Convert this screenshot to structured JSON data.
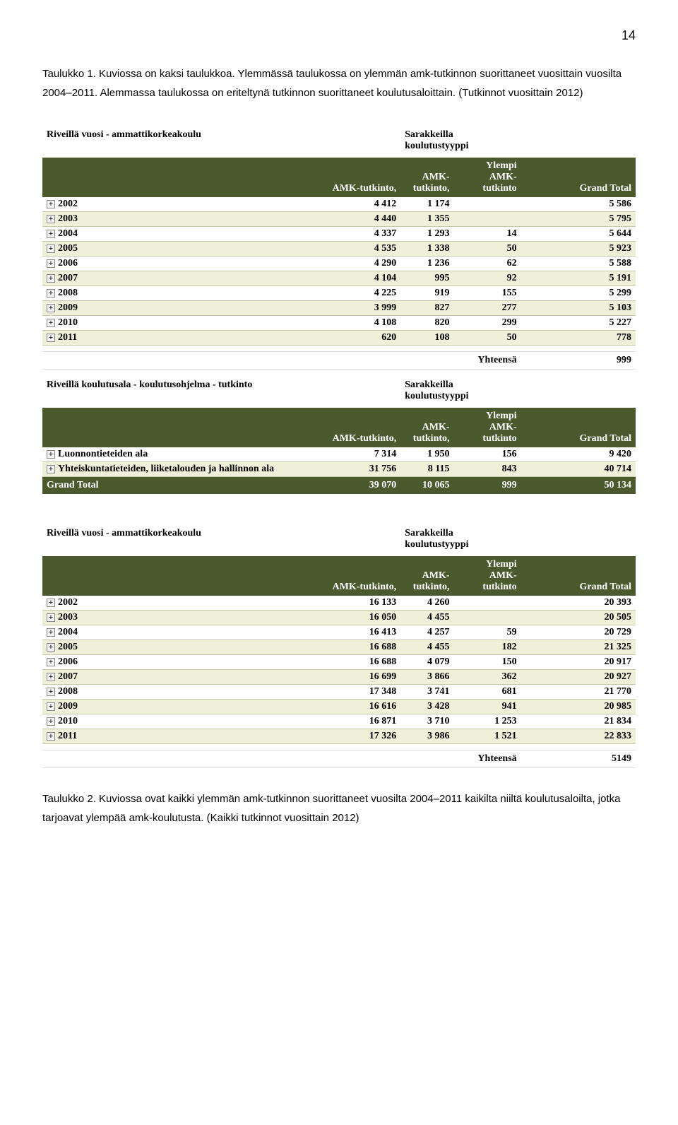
{
  "page_number": "14",
  "caption1": "Taulukko 1. Kuviossa on kaksi taulukkoa. Ylemmässä taulukossa on ylemmän amk-tutkinnon suorittaneet vuosittain vuosilta 2004–2011. Alemmassa taulukossa on eriteltynä tutkinnon suorittaneet koulutusaloittain. (Tutkinnot vuosittain 2012)",
  "caption2": "Taulukko 2. Kuviossa ovat kaikki ylemmän amk-tutkinnon suorittaneet vuosilta 2004–2011 kaikilta niiltä koulutusaloilta, jotka tarjoavat ylempää amk-koulutusta. (Kaikki tutkinnot vuosittain 2012)",
  "labels": {
    "rows_year": "Riveillä vuosi - ammattikorkeakoulu",
    "rows_field": "Riveillä koulutusala - koulutusohjelma - tutkinto",
    "cols": "Sarakkeilla koulutustyyppi",
    "col_amk1": "AMK-tutkinto,",
    "col_amk2": "AMK-tutkinto,",
    "col_ylempi": "Ylempi AMK-tutkinto",
    "col_total": "Grand Total",
    "yhteensa": "Yhteensä",
    "grand_total": "Grand Total"
  },
  "table1a": {
    "rows": [
      {
        "label": "2002",
        "c1": "4 412",
        "c2": "1 174",
        "c3": "",
        "c4": "5 586"
      },
      {
        "label": "2003",
        "c1": "4 440",
        "c2": "1 355",
        "c3": "",
        "c4": "5 795"
      },
      {
        "label": "2004",
        "c1": "4 337",
        "c2": "1 293",
        "c3": "14",
        "c4": "5 644"
      },
      {
        "label": "2005",
        "c1": "4 535",
        "c2": "1 338",
        "c3": "50",
        "c4": "5 923"
      },
      {
        "label": "2006",
        "c1": "4 290",
        "c2": "1 236",
        "c3": "62",
        "c4": "5 588"
      },
      {
        "label": "2007",
        "c1": "4 104",
        "c2": "995",
        "c3": "92",
        "c4": "5 191"
      },
      {
        "label": "2008",
        "c1": "4 225",
        "c2": "919",
        "c3": "155",
        "c4": "5 299"
      },
      {
        "label": "2009",
        "c1": "3 999",
        "c2": "827",
        "c3": "277",
        "c4": "5 103"
      },
      {
        "label": "2010",
        "c1": "4 108",
        "c2": "820",
        "c3": "299",
        "c4": "5 227"
      },
      {
        "label": "2011",
        "c1": "620",
        "c2": "108",
        "c3": "50",
        "c4": "778"
      }
    ],
    "yhteensa_value": "999"
  },
  "table1b": {
    "rows": [
      {
        "label": "Luonnontieteiden ala",
        "c1": "7 314",
        "c2": "1 950",
        "c3": "156",
        "c4": "9 420"
      },
      {
        "label": "Yhteiskuntatieteiden, liiketalouden ja hallinnon ala",
        "c1": "31 756",
        "c2": "8 115",
        "c3": "843",
        "c4": "40 714"
      }
    ],
    "grand_total": {
      "c1": "39 070",
      "c2": "10 065",
      "c3": "999",
      "c4": "50 134"
    }
  },
  "table2": {
    "rows": [
      {
        "label": "2002",
        "c1": "16 133",
        "c2": "4 260",
        "c3": "",
        "c4": "20 393"
      },
      {
        "label": "2003",
        "c1": "16 050",
        "c2": "4 455",
        "c3": "",
        "c4": "20 505"
      },
      {
        "label": "2004",
        "c1": "16 413",
        "c2": "4 257",
        "c3": "59",
        "c4": "20 729"
      },
      {
        "label": "2005",
        "c1": "16 688",
        "c2": "4 455",
        "c3": "182",
        "c4": "21 325"
      },
      {
        "label": "2006",
        "c1": "16 688",
        "c2": "4 079",
        "c3": "150",
        "c4": "20 917"
      },
      {
        "label": "2007",
        "c1": "16 699",
        "c2": "3 866",
        "c3": "362",
        "c4": "20 927"
      },
      {
        "label": "2008",
        "c1": "17 348",
        "c2": "3 741",
        "c3": "681",
        "c4": "21 770"
      },
      {
        "label": "2009",
        "c1": "16 616",
        "c2": "3 428",
        "c3": "941",
        "c4": "20 985"
      },
      {
        "label": "2010",
        "c1": "16 871",
        "c2": "3 710",
        "c3": "1 253",
        "c4": "21 834"
      },
      {
        "label": "2011",
        "c1": "17 326",
        "c2": "3 986",
        "c3": "1 521",
        "c4": "22 833"
      }
    ],
    "yhteensa_value": "5149"
  },
  "colors": {
    "header_bg": "#4a5a2e",
    "header_text": "#ffffff",
    "row_even": "#ffffff",
    "row_odd": "#eef0da",
    "border": "#c5c9a8"
  }
}
